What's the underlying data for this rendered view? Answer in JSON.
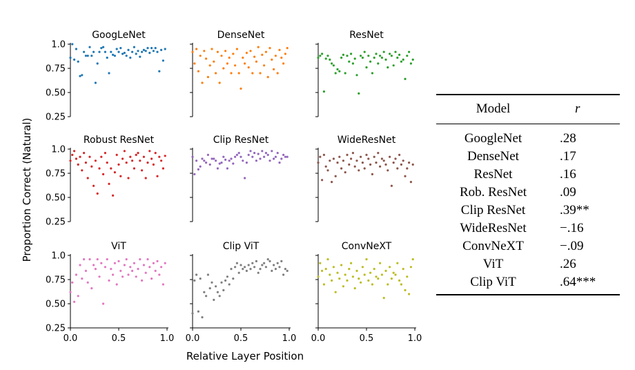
{
  "chart_data": [
    {
      "type": "scatter",
      "title": "GoogLeNet",
      "color": "#1f77b4",
      "xlim": [
        0,
        1
      ],
      "ylim": [
        0.25,
        1.0
      ],
      "x": [
        0.0,
        0.02,
        0.04,
        0.06,
        0.08,
        0.1,
        0.12,
        0.14,
        0.16,
        0.18,
        0.2,
        0.22,
        0.24,
        0.26,
        0.28,
        0.3,
        0.32,
        0.34,
        0.36,
        0.38,
        0.4,
        0.42,
        0.44,
        0.46,
        0.48,
        0.5,
        0.52,
        0.54,
        0.56,
        0.58,
        0.6,
        0.62,
        0.64,
        0.66,
        0.68,
        0.7,
        0.72,
        0.74,
        0.76,
        0.78,
        0.8,
        0.82,
        0.84,
        0.86,
        0.88,
        0.9,
        0.92,
        0.94,
        0.96,
        0.98
      ],
      "y": [
        0.86,
        1.0,
        0.84,
        0.95,
        0.82,
        0.67,
        0.68,
        0.92,
        0.88,
        0.88,
        0.97,
        0.88,
        0.92,
        0.6,
        0.8,
        0.92,
        0.96,
        0.97,
        0.92,
        0.86,
        0.7,
        0.92,
        0.89,
        0.88,
        0.95,
        0.92,
        0.96,
        0.9,
        0.91,
        0.88,
        0.94,
        0.86,
        0.92,
        0.97,
        0.9,
        0.93,
        0.87,
        0.92,
        0.94,
        0.93,
        0.96,
        0.91,
        0.96,
        0.93,
        0.96,
        0.92,
        0.72,
        0.94,
        0.83,
        0.95
      ]
    },
    {
      "type": "scatter",
      "title": "DenseNet",
      "color": "#ff7f0e",
      "xlim": [
        0,
        1
      ],
      "ylim": [
        0.25,
        1.0
      ],
      "x": [
        0.0,
        0.02,
        0.04,
        0.06,
        0.08,
        0.1,
        0.12,
        0.14,
        0.16,
        0.18,
        0.2,
        0.22,
        0.24,
        0.26,
        0.28,
        0.3,
        0.32,
        0.34,
        0.36,
        0.38,
        0.4,
        0.42,
        0.44,
        0.46,
        0.48,
        0.5,
        0.52,
        0.54,
        0.56,
        0.58,
        0.6,
        0.62,
        0.64,
        0.66,
        0.68,
        0.7,
        0.72,
        0.74,
        0.76,
        0.78,
        0.8,
        0.82,
        0.84,
        0.86,
        0.88,
        0.9,
        0.92,
        0.94,
        0.96,
        0.98
      ],
      "y": [
        0.92,
        0.8,
        0.95,
        0.72,
        0.88,
        0.6,
        0.93,
        0.85,
        0.66,
        0.78,
        0.95,
        0.82,
        0.7,
        0.92,
        0.6,
        0.88,
        0.75,
        0.93,
        0.8,
        0.86,
        0.7,
        0.9,
        0.78,
        0.95,
        0.7,
        0.54,
        0.86,
        0.8,
        0.91,
        0.76,
        0.93,
        0.7,
        0.87,
        0.82,
        0.97,
        0.7,
        0.89,
        0.78,
        0.92,
        0.66,
        0.96,
        0.84,
        0.74,
        0.88,
        0.7,
        0.94,
        0.86,
        0.8,
        0.9,
        0.96
      ]
    },
    {
      "type": "scatter",
      "title": "ResNet",
      "color": "#2ca02c",
      "xlim": [
        0,
        1
      ],
      "ylim": [
        0.25,
        1.0
      ],
      "x": [
        0.0,
        0.02,
        0.04,
        0.06,
        0.08,
        0.1,
        0.12,
        0.14,
        0.16,
        0.18,
        0.2,
        0.22,
        0.24,
        0.26,
        0.28,
        0.3,
        0.32,
        0.34,
        0.36,
        0.38,
        0.4,
        0.42,
        0.44,
        0.46,
        0.48,
        0.5,
        0.52,
        0.54,
        0.56,
        0.58,
        0.6,
        0.62,
        0.64,
        0.66,
        0.68,
        0.7,
        0.72,
        0.74,
        0.76,
        0.78,
        0.8,
        0.82,
        0.84,
        0.86,
        0.88,
        0.9,
        0.92,
        0.94,
        0.96,
        0.98
      ],
      "y": [
        0.86,
        0.88,
        0.9,
        0.51,
        0.85,
        0.88,
        0.84,
        0.8,
        0.78,
        0.7,
        0.74,
        0.72,
        0.86,
        0.89,
        0.7,
        0.88,
        0.82,
        0.9,
        0.8,
        0.85,
        0.68,
        0.49,
        0.88,
        0.86,
        0.92,
        0.76,
        0.88,
        0.82,
        0.7,
        0.86,
        0.9,
        0.8,
        0.88,
        0.86,
        0.92,
        0.84,
        0.76,
        0.9,
        0.88,
        0.78,
        0.92,
        0.86,
        0.89,
        0.82,
        0.84,
        0.64,
        0.88,
        0.92,
        0.8,
        0.84
      ]
    },
    {
      "type": "scatter",
      "title": "Robust ResNet",
      "color": "#d62728",
      "xlim": [
        0,
        1
      ],
      "ylim": [
        0.25,
        1.0
      ],
      "x": [
        0.0,
        0.02,
        0.04,
        0.06,
        0.08,
        0.1,
        0.12,
        0.14,
        0.16,
        0.18,
        0.2,
        0.22,
        0.24,
        0.26,
        0.28,
        0.3,
        0.32,
        0.34,
        0.36,
        0.38,
        0.4,
        0.42,
        0.44,
        0.46,
        0.48,
        0.5,
        0.52,
        0.54,
        0.56,
        0.58,
        0.6,
        0.62,
        0.64,
        0.66,
        0.68,
        0.7,
        0.72,
        0.74,
        0.76,
        0.78,
        0.8,
        0.82,
        0.84,
        0.86,
        0.88,
        0.9,
        0.92,
        0.94,
        0.96,
        0.98
      ],
      "y": [
        0.88,
        0.94,
        0.98,
        0.9,
        0.84,
        0.92,
        0.78,
        0.96,
        0.86,
        0.7,
        0.92,
        0.82,
        0.62,
        0.88,
        0.54,
        0.8,
        0.92,
        0.74,
        0.96,
        0.86,
        0.64,
        0.8,
        0.52,
        0.76,
        0.94,
        0.84,
        0.72,
        0.9,
        0.98,
        0.86,
        0.7,
        0.92,
        0.88,
        0.8,
        0.94,
        0.96,
        0.88,
        0.78,
        0.92,
        0.7,
        0.86,
        0.98,
        0.9,
        0.84,
        0.96,
        0.72,
        0.92,
        0.88,
        0.8,
        0.93
      ]
    },
    {
      "type": "scatter",
      "title": "Clip ResNet",
      "color": "#9467bd",
      "xlim": [
        0,
        1
      ],
      "ylim": [
        0.25,
        1.0
      ],
      "x": [
        0.0,
        0.02,
        0.04,
        0.06,
        0.08,
        0.1,
        0.12,
        0.14,
        0.16,
        0.18,
        0.2,
        0.22,
        0.24,
        0.26,
        0.28,
        0.3,
        0.32,
        0.34,
        0.36,
        0.38,
        0.4,
        0.42,
        0.44,
        0.46,
        0.48,
        0.5,
        0.52,
        0.54,
        0.56,
        0.58,
        0.6,
        0.62,
        0.64,
        0.66,
        0.68,
        0.7,
        0.72,
        0.74,
        0.76,
        0.78,
        0.8,
        0.82,
        0.84,
        0.86,
        0.88,
        0.9,
        0.92,
        0.94,
        0.96,
        0.98
      ],
      "y": [
        0.92,
        0.74,
        0.88,
        0.79,
        0.82,
        0.9,
        0.88,
        0.86,
        0.94,
        0.84,
        0.9,
        0.9,
        0.88,
        0.8,
        0.85,
        0.86,
        0.92,
        0.89,
        0.8,
        0.88,
        0.9,
        0.85,
        0.92,
        0.94,
        0.96,
        0.92,
        0.88,
        0.7,
        0.86,
        0.94,
        0.98,
        0.92,
        0.96,
        0.88,
        0.95,
        0.9,
        0.98,
        0.92,
        0.96,
        0.94,
        0.88,
        0.98,
        0.9,
        0.92,
        0.96,
        0.86,
        0.9,
        0.94,
        0.92,
        0.92
      ]
    },
    {
      "type": "scatter",
      "title": "WideResNet",
      "color": "#8c564b",
      "xlim": [
        0,
        1
      ],
      "ylim": [
        0.25,
        1.0
      ],
      "x": [
        0.0,
        0.02,
        0.04,
        0.06,
        0.08,
        0.1,
        0.12,
        0.14,
        0.16,
        0.18,
        0.2,
        0.22,
        0.24,
        0.26,
        0.28,
        0.3,
        0.32,
        0.34,
        0.36,
        0.38,
        0.4,
        0.42,
        0.44,
        0.46,
        0.48,
        0.5,
        0.52,
        0.54,
        0.56,
        0.58,
        0.6,
        0.62,
        0.64,
        0.66,
        0.68,
        0.7,
        0.72,
        0.74,
        0.76,
        0.78,
        0.8,
        0.82,
        0.84,
        0.86,
        0.88,
        0.9,
        0.92,
        0.94,
        0.96,
        0.98
      ],
      "y": [
        0.86,
        0.92,
        0.68,
        0.94,
        0.82,
        0.78,
        0.88,
        0.66,
        0.9,
        0.72,
        0.86,
        0.92,
        0.8,
        0.88,
        0.76,
        0.94,
        0.84,
        0.9,
        0.96,
        0.82,
        0.88,
        0.78,
        0.92,
        0.86,
        0.8,
        0.94,
        0.9,
        0.84,
        0.74,
        0.92,
        0.86,
        0.96,
        0.82,
        0.9,
        0.88,
        0.84,
        0.78,
        0.92,
        0.62,
        0.86,
        0.9,
        0.8,
        0.94,
        0.84,
        0.88,
        0.72,
        0.8,
        0.86,
        0.66,
        0.84
      ]
    },
    {
      "type": "scatter",
      "title": "ViT",
      "color": "#e377c2",
      "xlim": [
        0,
        1
      ],
      "ylim": [
        0.25,
        1.0
      ],
      "x": [
        0.0,
        0.02,
        0.04,
        0.06,
        0.08,
        0.1,
        0.12,
        0.14,
        0.16,
        0.18,
        0.2,
        0.22,
        0.24,
        0.26,
        0.28,
        0.3,
        0.32,
        0.34,
        0.36,
        0.38,
        0.4,
        0.42,
        0.44,
        0.46,
        0.48,
        0.5,
        0.52,
        0.54,
        0.56,
        0.58,
        0.6,
        0.62,
        0.64,
        0.66,
        0.68,
        0.7,
        0.72,
        0.74,
        0.76,
        0.78,
        0.8,
        0.82,
        0.84,
        0.86,
        0.88,
        0.9,
        0.92,
        0.94,
        0.96,
        0.98
      ],
      "y": [
        0.62,
        0.72,
        0.52,
        0.8,
        0.58,
        0.9,
        0.76,
        0.96,
        0.84,
        0.72,
        0.96,
        0.66,
        0.9,
        0.86,
        0.96,
        0.78,
        0.92,
        0.5,
        0.88,
        0.96,
        0.74,
        0.86,
        0.8,
        0.92,
        0.7,
        0.94,
        0.84,
        0.78,
        0.9,
        0.96,
        0.8,
        0.88,
        0.84,
        0.92,
        0.78,
        0.86,
        0.96,
        0.74,
        0.9,
        0.82,
        0.96,
        0.88,
        0.76,
        0.92,
        0.84,
        0.94,
        0.8,
        0.88,
        0.7,
        0.92
      ]
    },
    {
      "type": "scatter",
      "title": "Clip ViT",
      "color": "#7f7f7f",
      "xlim": [
        0,
        1
      ],
      "ylim": [
        0.25,
        1.0
      ],
      "x": [
        0.0,
        0.02,
        0.04,
        0.06,
        0.08,
        0.1,
        0.12,
        0.14,
        0.16,
        0.18,
        0.2,
        0.22,
        0.24,
        0.26,
        0.28,
        0.3,
        0.32,
        0.34,
        0.36,
        0.38,
        0.4,
        0.42,
        0.44,
        0.46,
        0.48,
        0.5,
        0.52,
        0.54,
        0.56,
        0.58,
        0.6,
        0.62,
        0.64,
        0.66,
        0.68,
        0.7,
        0.72,
        0.74,
        0.76,
        0.78,
        0.8,
        0.82,
        0.84,
        0.86,
        0.88,
        0.9,
        0.92,
        0.94,
        0.96,
        0.98
      ],
      "y": [
        0.4,
        0.74,
        0.8,
        0.42,
        0.76,
        0.36,
        0.62,
        0.58,
        0.8,
        0.66,
        0.72,
        0.54,
        0.68,
        0.62,
        0.58,
        0.72,
        0.64,
        0.74,
        0.78,
        0.7,
        0.86,
        0.76,
        0.88,
        0.92,
        0.82,
        0.9,
        0.86,
        0.88,
        0.84,
        0.9,
        0.86,
        0.92,
        0.88,
        0.94,
        0.82,
        0.86,
        0.9,
        0.92,
        0.88,
        0.96,
        0.94,
        0.84,
        0.9,
        0.86,
        0.92,
        0.88,
        0.94,
        0.8,
        0.86,
        0.84
      ]
    },
    {
      "type": "scatter",
      "title": "ConvNeXT",
      "color": "#bcbd22",
      "xlim": [
        0,
        1
      ],
      "ylim": [
        0.25,
        1.0
      ],
      "x": [
        0.0,
        0.02,
        0.04,
        0.06,
        0.08,
        0.1,
        0.12,
        0.14,
        0.16,
        0.18,
        0.2,
        0.22,
        0.24,
        0.26,
        0.28,
        0.3,
        0.32,
        0.34,
        0.36,
        0.38,
        0.4,
        0.42,
        0.44,
        0.46,
        0.48,
        0.5,
        0.52,
        0.54,
        0.56,
        0.58,
        0.6,
        0.62,
        0.64,
        0.66,
        0.68,
        0.7,
        0.72,
        0.74,
        0.76,
        0.78,
        0.8,
        0.82,
        0.84,
        0.86,
        0.88,
        0.9,
        0.92,
        0.94,
        0.96,
        0.98
      ],
      "y": [
        0.78,
        0.92,
        0.84,
        0.7,
        0.86,
        0.96,
        0.8,
        0.74,
        0.88,
        0.62,
        0.82,
        0.76,
        0.9,
        0.68,
        0.8,
        0.74,
        0.86,
        0.92,
        0.78,
        0.66,
        0.84,
        0.76,
        0.72,
        0.88,
        0.8,
        0.96,
        0.74,
        0.82,
        0.7,
        0.86,
        0.78,
        0.76,
        0.92,
        0.8,
        0.56,
        0.84,
        0.7,
        0.88,
        0.76,
        0.82,
        0.8,
        0.92,
        0.74,
        0.7,
        0.86,
        0.64,
        0.78,
        0.6,
        0.88,
        0.96
      ]
    }
  ],
  "axes": {
    "ylabel": "Proportion Correct (Natural)",
    "xlabel": "Relative Layer Position",
    "yticks": [
      "0.25",
      "0.50",
      "0.75",
      "1.0"
    ],
    "xticks": [
      "0.0",
      "0.5",
      "1.0"
    ]
  },
  "table": {
    "headers": {
      "model": "Model",
      "r": "r"
    },
    "rows": [
      {
        "model": "GoogleNet",
        "r": ".28"
      },
      {
        "model": "DenseNet",
        "r": ".17"
      },
      {
        "model": "ResNet",
        "r": ".16"
      },
      {
        "model": "Rob. ResNet",
        "r": ".09"
      },
      {
        "model": "Clip ResNet",
        "r": ".39**"
      },
      {
        "model": "WideResNet",
        "r": "−.16"
      },
      {
        "model": "ConvNeXT",
        "r": "−.09"
      },
      {
        "model": "ViT",
        "r": ".26"
      },
      {
        "model": "Clip ViT",
        "r": ".64***"
      }
    ]
  }
}
